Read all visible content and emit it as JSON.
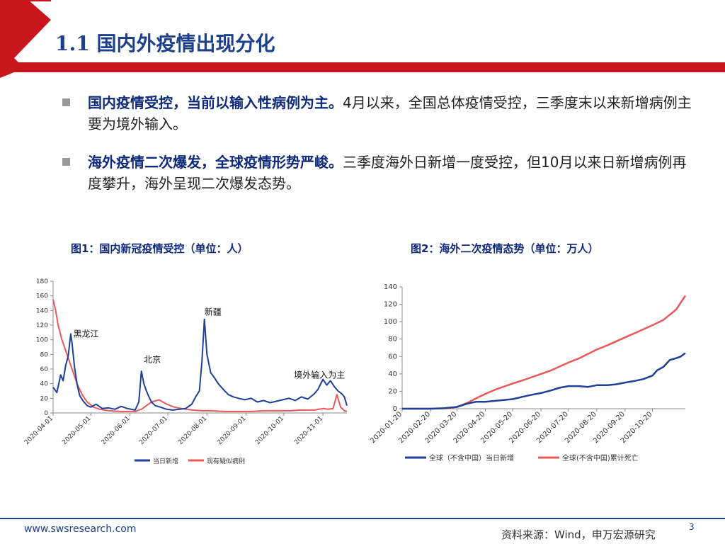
{
  "header": {
    "title": "1.1 国内外疫情出现分化"
  },
  "bullets": [
    {
      "bold": "国内疫情受控，当前以输入性病例为主。",
      "text": "4月以来，全国总体疫情受控，三季度末以来新增病例主要为境外输入。"
    },
    {
      "bold": "海外疫情二次爆发，全球疫情形势严峻。",
      "text": "三季度海外日新增一度受控，但10月以来日新增病例再度攀升，海外呈现二次爆发态势。"
    }
  ],
  "chart_data": [
    {
      "type": "line",
      "caption": "图1：国内新冠疫情受控（单位：人）",
      "title": "",
      "ylim": [
        0,
        180
      ],
      "yticks": [
        0,
        20,
        40,
        60,
        80,
        100,
        120,
        140,
        160,
        180
      ],
      "xlim": [
        "2020-04-01",
        "2020-11-20"
      ],
      "x_tick_labels": [
        "2020-04-01",
        "2020-05-01",
        "2020-06-01",
        "2020-07-01",
        "2020-08-01",
        "2020-09-01",
        "2020-10-01",
        "2020-11-01"
      ],
      "x_tick_dates": [
        "2020-04-01",
        "2020-05-01",
        "2020-06-01",
        "2020-07-01",
        "2020-08-01",
        "2020-09-01",
        "2020-10-01",
        "2020-11-01"
      ],
      "annotations": [
        {
          "text": "黑龙江",
          "x": "2020-04-17",
          "y": 104
        },
        {
          "text": "北京",
          "x": "2020-06-12",
          "y": 69
        },
        {
          "text": "新疆",
          "x": "2020-07-30",
          "y": 134
        },
        {
          "text": "境外输入为主",
          "x": "2020-10-09",
          "y": 48
        }
      ],
      "series": [
        {
          "name": "当日新增",
          "color": "#1f3f99",
          "x": [
            "2020-04-01",
            "2020-04-04",
            "2020-04-07",
            "2020-04-09",
            "2020-04-11",
            "2020-04-13",
            "2020-04-15",
            "2020-04-16",
            "2020-04-18",
            "2020-04-20",
            "2020-04-22",
            "2020-04-25",
            "2020-04-28",
            "2020-05-01",
            "2020-05-05",
            "2020-05-10",
            "2020-05-15",
            "2020-05-20",
            "2020-05-25",
            "2020-05-30",
            "2020-06-05",
            "2020-06-08",
            "2020-06-10",
            "2020-06-12",
            "2020-06-14",
            "2020-06-16",
            "2020-06-18",
            "2020-06-21",
            "2020-06-25",
            "2020-06-30",
            "2020-07-05",
            "2020-07-10",
            "2020-07-15",
            "2020-07-20",
            "2020-07-23",
            "2020-07-26",
            "2020-07-28",
            "2020-07-30",
            "2020-08-01",
            "2020-08-04",
            "2020-08-07",
            "2020-08-10",
            "2020-08-14",
            "2020-08-18",
            "2020-08-22",
            "2020-08-26",
            "2020-08-31",
            "2020-09-05",
            "2020-09-10",
            "2020-09-15",
            "2020-09-20",
            "2020-09-25",
            "2020-09-30",
            "2020-10-05",
            "2020-10-10",
            "2020-10-15",
            "2020-10-20",
            "2020-10-25",
            "2020-10-28",
            "2020-11-01",
            "2020-11-04",
            "2020-11-07",
            "2020-11-10",
            "2020-11-13",
            "2020-11-16",
            "2020-11-18",
            "2020-11-20"
          ],
          "values": [
            35,
            28,
            52,
            44,
            65,
            78,
            108,
            96,
            62,
            40,
            24,
            16,
            10,
            8,
            12,
            6,
            7,
            5,
            9,
            6,
            4,
            15,
            57,
            40,
            30,
            22,
            15,
            10,
            8,
            5,
            4,
            5,
            6,
            12,
            22,
            30,
            70,
            128,
            80,
            55,
            48,
            40,
            32,
            25,
            22,
            20,
            18,
            20,
            15,
            17,
            14,
            16,
            18,
            20,
            17,
            22,
            19,
            26,
            32,
            46,
            38,
            44,
            36,
            30,
            26,
            22,
            10
          ]
        },
        {
          "name": "现有疑似病例",
          "color": "#e8585a",
          "x": [
            "2020-04-01",
            "2020-04-03",
            "2020-04-05",
            "2020-04-08",
            "2020-04-11",
            "2020-04-14",
            "2020-04-17",
            "2020-04-20",
            "2020-04-24",
            "2020-04-28",
            "2020-05-03",
            "2020-05-08",
            "2020-05-15",
            "2020-05-25",
            "2020-06-05",
            "2020-06-10",
            "2020-06-14",
            "2020-06-18",
            "2020-06-24",
            "2020-06-30",
            "2020-07-06",
            "2020-07-12",
            "2020-07-20",
            "2020-07-28",
            "2020-08-05",
            "2020-08-15",
            "2020-08-25",
            "2020-09-05",
            "2020-09-15",
            "2020-09-25",
            "2020-10-05",
            "2020-10-15",
            "2020-10-25",
            "2020-11-01",
            "2020-11-05",
            "2020-11-09",
            "2020-11-12",
            "2020-11-15",
            "2020-11-18",
            "2020-11-20"
          ],
          "values": [
            155,
            140,
            120,
            100,
            85,
            70,
            55,
            40,
            25,
            15,
            8,
            5,
            3,
            2,
            2,
            5,
            10,
            15,
            18,
            12,
            8,
            6,
            4,
            3,
            3,
            2,
            2,
            2,
            3,
            3,
            3,
            4,
            4,
            6,
            5,
            6,
            25,
            8,
            3,
            2
          ]
        }
      ]
    },
    {
      "type": "line",
      "caption": "图2：海外二次疫情态势（单位：万人）",
      "title": "",
      "ylim": [
        0,
        140
      ],
      "yticks": [
        0,
        20,
        40,
        60,
        80,
        100,
        120,
        140
      ],
      "xlim": [
        "2020-01-20",
        "2020-11-25"
      ],
      "x_tick_labels": [
        "2020-01-20",
        "2020-02-20",
        "2020-03-20",
        "2020-04-20",
        "2020-05-20",
        "2020-06-20",
        "2020-07-20",
        "2020-08-20",
        "2020-09-20",
        "2020-10-20"
      ],
      "x_tick_dates": [
        "2020-01-20",
        "2020-02-20",
        "2020-03-20",
        "2020-04-20",
        "2020-05-20",
        "2020-06-20",
        "2020-07-20",
        "2020-08-20",
        "2020-09-20",
        "2020-10-20"
      ],
      "series": [
        {
          "name": "全球（不含中国）当日新增",
          "color": "#1f3f99",
          "x": [
            "2020-01-20",
            "2020-02-20",
            "2020-03-05",
            "2020-03-20",
            "2020-04-01",
            "2020-04-10",
            "2020-04-20",
            "2020-05-01",
            "2020-05-10",
            "2020-05-20",
            "2020-06-01",
            "2020-06-10",
            "2020-06-20",
            "2020-07-01",
            "2020-07-10",
            "2020-07-20",
            "2020-08-01",
            "2020-08-10",
            "2020-08-20",
            "2020-09-01",
            "2020-09-10",
            "2020-09-20",
            "2020-10-01",
            "2020-10-10",
            "2020-10-20",
            "2020-10-25",
            "2020-11-01",
            "2020-11-08",
            "2020-11-15",
            "2020-11-20",
            "2020-11-25"
          ],
          "values": [
            0,
            0,
            0.5,
            2,
            6,
            8,
            8,
            9,
            10,
            11,
            14,
            16,
            18,
            21,
            24,
            26,
            26,
            25,
            27,
            27,
            28,
            30,
            32,
            34,
            38,
            44,
            48,
            56,
            58,
            60,
            64
          ]
        },
        {
          "name": "全球(不含中国)累计死亡",
          "color": "#e8585a",
          "x": [
            "2020-01-20",
            "2020-02-20",
            "2020-03-10",
            "2020-03-20",
            "2020-04-01",
            "2020-04-10",
            "2020-04-20",
            "2020-05-01",
            "2020-05-20",
            "2020-06-01",
            "2020-06-20",
            "2020-07-01",
            "2020-07-20",
            "2020-08-01",
            "2020-08-20",
            "2020-09-01",
            "2020-09-20",
            "2020-10-01",
            "2020-10-20",
            "2020-11-01",
            "2020-11-15",
            "2020-11-25"
          ],
          "values": [
            0,
            0,
            0.5,
            2,
            7,
            12,
            17,
            22,
            29,
            33,
            40,
            44,
            53,
            58,
            68,
            73,
            82,
            87,
            96,
            102,
            114,
            130
          ]
        }
      ]
    }
  ],
  "footer": {
    "url": "www.swsresearch.com",
    "source": "资料来源：Wind，申万宏源研究",
    "page": "3"
  }
}
